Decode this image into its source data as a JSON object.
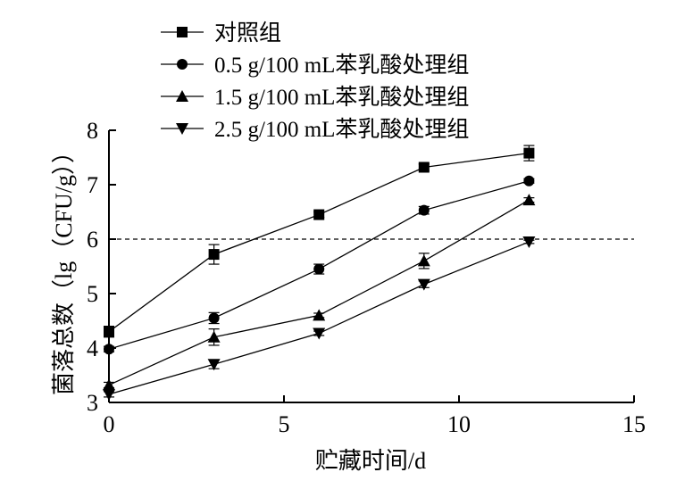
{
  "chart_data": {
    "type": "line",
    "xlabel": "贮藏时间/d",
    "ylabel": "菌落总数（lg（CFU/g））",
    "xlim": [
      0,
      15
    ],
    "ylim": [
      3,
      8
    ],
    "xticks": [
      0,
      5,
      10,
      15
    ],
    "yticks": [
      3,
      4,
      5,
      6,
      7,
      8
    ],
    "grid": false,
    "legend_position": "top-left",
    "reference_line": {
      "y": 6,
      "style": "dashed"
    },
    "x": [
      0,
      3,
      6,
      9,
      12
    ],
    "series": [
      {
        "name": "对照组",
        "marker": "square",
        "values": [
          4.3,
          5.72,
          6.45,
          7.32,
          7.58
        ],
        "errors": [
          0.1,
          0.18,
          0.05,
          0.06,
          0.14
        ]
      },
      {
        "name": "0.5 g/100 mL苯乳酸处理组",
        "marker": "circle",
        "values": [
          3.98,
          4.55,
          5.45,
          6.53,
          7.07
        ],
        "errors": [
          0.05,
          0.1,
          0.09,
          0.07,
          0.04
        ]
      },
      {
        "name": "1.5 g/100 mL苯乳酸处理组",
        "marker": "triangle-up",
        "values": [
          3.32,
          4.2,
          4.6,
          5.6,
          6.72
        ],
        "errors": [
          0.05,
          0.15,
          0.04,
          0.14,
          0.04
        ]
      },
      {
        "name": "2.5 g/100 mL苯乳酸处理组",
        "marker": "triangle-down",
        "values": [
          3.15,
          3.7,
          4.27,
          5.17,
          5.95
        ],
        "errors": [
          0.05,
          0.08,
          0.04,
          0.06,
          0.03
        ]
      }
    ]
  }
}
